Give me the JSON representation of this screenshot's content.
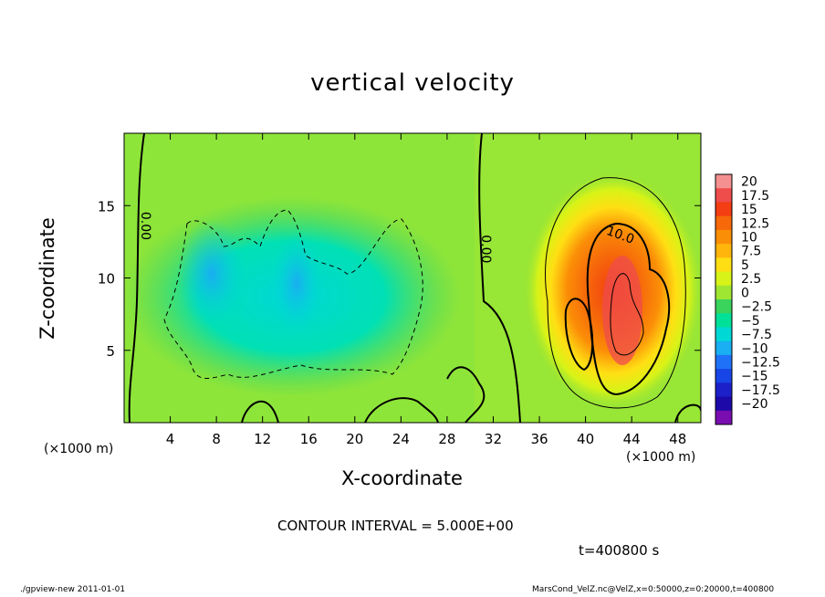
{
  "chart_data": {
    "type": "heatmap",
    "title": "vertical velocity",
    "xlabel": "X-coordinate",
    "ylabel": "Z-coordinate",
    "x_unit_label": "(×1000 m)",
    "x_ticks": [
      4,
      8,
      12,
      16,
      20,
      24,
      28,
      32,
      36,
      40,
      44,
      48
    ],
    "y_ticks": [
      5,
      10,
      15
    ],
    "xlim": [
      0,
      50
    ],
    "ylim": [
      0,
      20
    ],
    "colorbar": {
      "levels": [
        "20",
        "17.5",
        "15",
        "12.5",
        "10",
        "7.5",
        "5",
        "2.5",
        "0",
        "−2.5",
        "−5",
        "−7.5",
        "−10",
        "−12.5",
        "−15",
        "−17.5",
        "−20"
      ],
      "colors": [
        "#f59090",
        "#ef4c4c",
        "#f33d12",
        "#f6680a",
        "#fb8e07",
        "#ffb50c",
        "#ffdf14",
        "#d7f317",
        "#9fe633",
        "#3ad35b",
        "#00e098",
        "#00d8d6",
        "#1aaef2",
        "#1f72f7",
        "#1845e6",
        "#1c20c8",
        "#1c09a8",
        "#7a0db0"
      ]
    },
    "contour_labels": [
      {
        "text": "0.00",
        "x": 1.5,
        "y": 13.6
      },
      {
        "text": "0.00",
        "x": 31.0,
        "y": 12.0
      },
      {
        "text": "10.0",
        "x": 42.9,
        "y": 12.7
      }
    ],
    "features": [
      {
        "name": "updraft",
        "x_center": 42.5,
        "z_center": 8.0,
        "max": 17.5
      },
      {
        "name": "downdraft-region",
        "x_range": [
          5,
          30
        ],
        "z_range": [
          2,
          15
        ],
        "min": -7.5
      }
    ]
  },
  "contour_interval_text": "CONTOUR INTERVAL = 5.000E+00",
  "time_text": "t=400800 s",
  "footer_left": "./gpview-new  2011-01-01",
  "footer_right": "MarsCond_VelZ.nc@VelZ,x=0:50000,z=0:20000,t=400800"
}
